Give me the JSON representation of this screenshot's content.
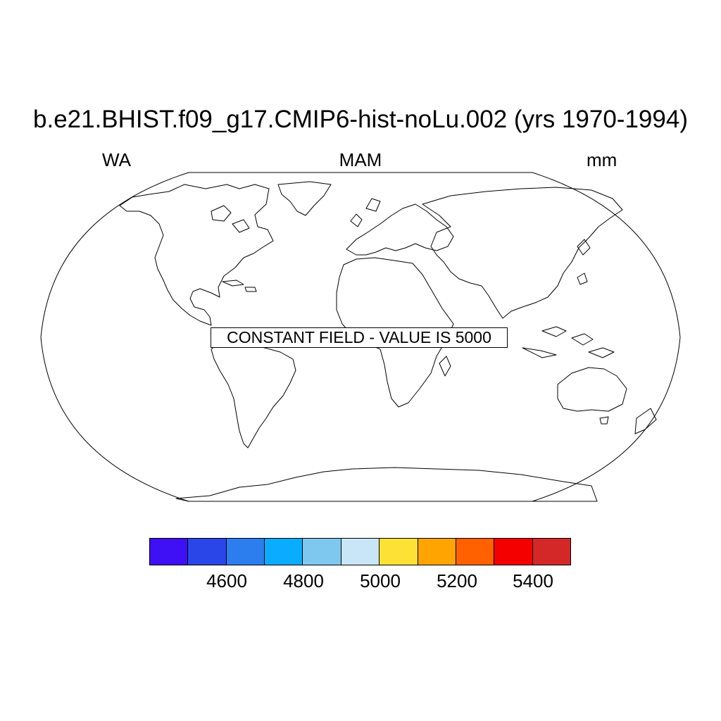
{
  "header": {
    "title": "b.e21.BHIST.f09_g17.CMIP6-hist-noLu.002 (yrs 1970-1994)",
    "left_label": "WA",
    "center_label": "MAM",
    "right_label": "mm"
  },
  "map": {
    "projection": "Robinson",
    "message": "CONSTANT FIELD - VALUE IS 5000"
  },
  "colorbar": {
    "colors": [
      "#3f0ff5",
      "#2a45e8",
      "#2c7eee",
      "#0aacff",
      "#7ec8ef",
      "#c9e5f8",
      "#fde134",
      "#ffa400",
      "#ff6000",
      "#f50000",
      "#d42828"
    ],
    "tick_labels": [
      "4600",
      "4800",
      "5000",
      "5200",
      "5400"
    ]
  }
}
